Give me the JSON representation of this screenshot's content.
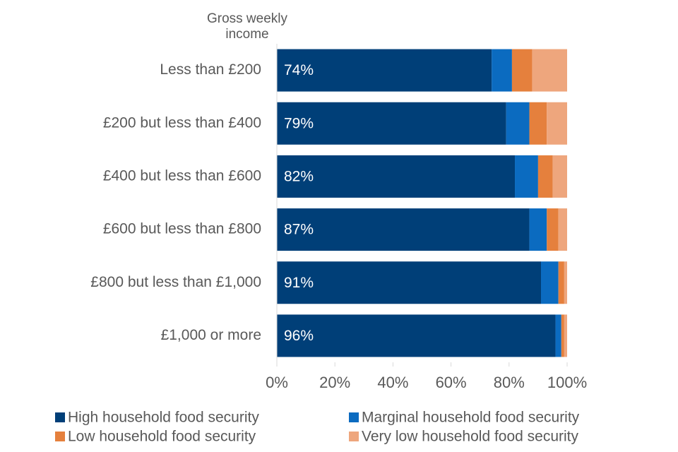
{
  "chart_data": {
    "type": "stacked_bar_horizontal",
    "y_axis_label": "Gross weekly income",
    "categories": [
      "Less than £200",
      "£200 but less than £400",
      "£400 but less than £600",
      "£600 but less than £800",
      "£800 but less than £1,000",
      "£1,000 or more"
    ],
    "series": [
      {
        "name": "High household food security",
        "color": "#003f78",
        "values": [
          74,
          79,
          82,
          87,
          91,
          96
        ],
        "value_labels": [
          "74%",
          "79%",
          "82%",
          "87%",
          "91%",
          "96%"
        ]
      },
      {
        "name": "Marginal household food security",
        "color": "#0b6bc0",
        "values": [
          7,
          8,
          8,
          6,
          6,
          2
        ]
      },
      {
        "name": "Low household food security",
        "color": "#e5803d",
        "values": [
          7,
          6,
          5,
          4,
          2,
          1
        ]
      },
      {
        "name": "Very low household food security",
        "color": "#eea67d",
        "values": [
          12,
          7,
          5,
          3,
          1,
          1
        ]
      }
    ],
    "xlim": [
      0,
      100
    ],
    "xticks": [
      {
        "value": 0,
        "label": "0%"
      },
      {
        "value": 20,
        "label": "20%"
      },
      {
        "value": 40,
        "label": "40%"
      },
      {
        "value": 60,
        "label": "60%"
      },
      {
        "value": 80,
        "label": "80%"
      },
      {
        "value": 100,
        "label": "100%"
      }
    ],
    "legend": "bottom"
  }
}
